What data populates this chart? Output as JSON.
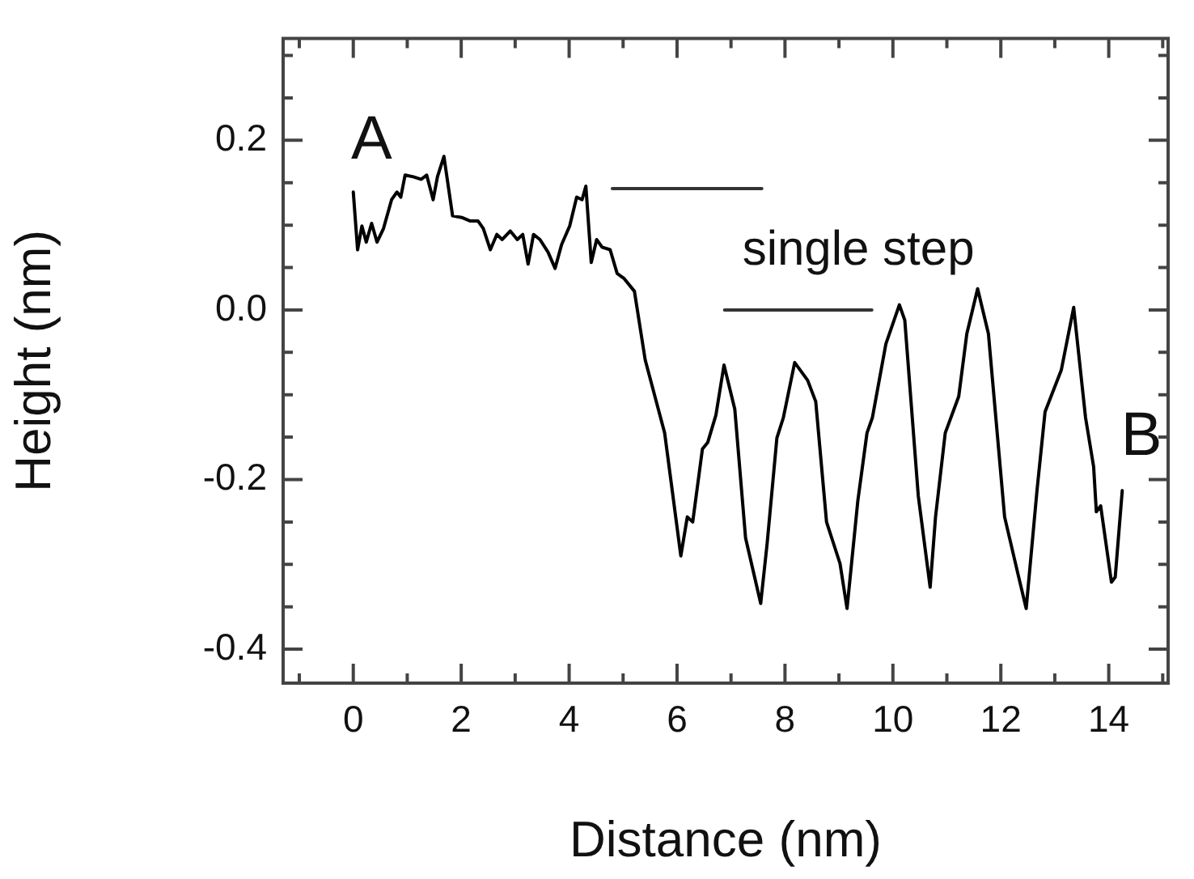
{
  "chart_data": {
    "type": "line",
    "xlabel": "Distance (nm)",
    "ylabel": "Height (nm)",
    "xlim": [
      -1.3,
      15.1
    ],
    "ylim": [
      -0.44,
      0.32
    ],
    "xticks": [
      {
        "value": -1,
        "label": null
      },
      0,
      {
        "value": 1,
        "label": null
      },
      2,
      {
        "value": 3,
        "label": null
      },
      4,
      {
        "value": 5,
        "label": null
      },
      6,
      {
        "value": 7,
        "label": null
      },
      8,
      {
        "value": 9,
        "label": null
      },
      10,
      {
        "value": 11,
        "label": null
      },
      12,
      {
        "value": 13,
        "label": null
      },
      14,
      {
        "value": 15,
        "label": null
      }
    ],
    "yticks": [
      {
        "value": -0.4,
        "label": "-0.4"
      },
      {
        "value": -0.35,
        "label": null
      },
      {
        "value": -0.3,
        "label": null
      },
      {
        "value": -0.25,
        "label": null
      },
      {
        "value": -0.2,
        "label": "-0.2"
      },
      {
        "value": -0.15,
        "label": null
      },
      {
        "value": -0.1,
        "label": null
      },
      {
        "value": -0.05,
        "label": null
      },
      {
        "value": 0,
        "label": "0.0"
      },
      {
        "value": 0.05,
        "label": null
      },
      {
        "value": 0.1,
        "label": null
      },
      {
        "value": 0.15,
        "label": null
      },
      {
        "value": 0.2,
        "label": "0.2"
      },
      {
        "value": 0.25,
        "label": null
      },
      {
        "value": 0.3,
        "label": null
      }
    ],
    "grid": false,
    "legend": false,
    "marker": "none",
    "line_style": "solid",
    "series": [
      {
        "color": "#000000",
        "x": [
          0,
          0.08,
          0.16,
          0.24,
          0.34,
          0.44,
          0.56,
          0.71,
          0.81,
          0.88,
          0.96,
          1.11,
          1.26,
          1.36,
          1.48,
          1.56,
          1.68,
          1.84,
          2.01,
          2.16,
          2.31,
          2.41,
          2.54,
          2.66,
          2.76,
          2.91,
          3.04,
          3.14,
          3.24,
          3.34,
          3.46,
          3.61,
          3.74,
          3.86,
          4.01,
          4.14,
          4.24,
          4.31,
          4.41,
          4.51,
          4.61,
          4.76,
          4.89,
          5.02,
          5.21,
          5.41,
          5.77,
          6.07,
          6.19,
          6.29,
          6.47,
          6.57,
          6.72,
          6.87,
          7.07,
          7.27,
          7.55,
          7.67,
          7.85,
          7.97,
          8.18,
          8.42,
          8.57,
          8.77,
          9.02,
          9.15,
          9.35,
          9.52,
          9.62,
          9.87,
          10.12,
          10.22,
          10.47,
          10.69,
          10.79,
          10.97,
          11.22,
          11.37,
          11.57,
          11.77,
          12.07,
          12.32,
          12.47,
          12.67,
          12.82,
          13.12,
          13.35,
          13.57,
          13.72,
          13.77,
          13.85,
          14.05,
          14.12,
          14.25
        ],
        "values": [
          0.139,
          0.071,
          0.099,
          0.08,
          0.102,
          0.08,
          0.096,
          0.13,
          0.139,
          0.133,
          0.159,
          0.157,
          0.154,
          0.159,
          0.13,
          0.157,
          0.181,
          0.111,
          0.109,
          0.105,
          0.105,
          0.096,
          0.071,
          0.089,
          0.083,
          0.093,
          0.083,
          0.089,
          0.054,
          0.089,
          0.083,
          0.068,
          0.049,
          0.077,
          0.099,
          0.133,
          0.13,
          0.146,
          0.056,
          0.083,
          0.074,
          0.071,
          0.043,
          0.037,
          0.022,
          -0.059,
          -0.145,
          -0.29,
          -0.244,
          -0.25,
          -0.164,
          -0.156,
          -0.124,
          -0.065,
          -0.117,
          -0.269,
          -0.346,
          -0.275,
          -0.151,
          -0.127,
          -0.062,
          -0.083,
          -0.108,
          -0.25,
          -0.299,
          -0.352,
          -0.225,
          -0.145,
          -0.127,
          -0.04,
          0.006,
          -0.012,
          -0.219,
          -0.327,
          -0.244,
          -0.145,
          -0.102,
          -0.028,
          0.025,
          -0.028,
          -0.244,
          -0.312,
          -0.352,
          -0.213,
          -0.12,
          -0.071,
          0.003,
          -0.127,
          -0.185,
          -0.238,
          -0.231,
          -0.321,
          -0.315,
          -0.213
        ]
      },
      {
        "color": "#333333",
        "x": [
          4.8,
          7.57
        ],
        "values": [
          0.143,
          0.143
        ]
      },
      {
        "color": "#333333",
        "x": [
          6.88,
          9.61
        ],
        "values": [
          0,
          0
        ]
      }
    ],
    "annotations": [
      "A",
      "single step",
      "B"
    ]
  }
}
